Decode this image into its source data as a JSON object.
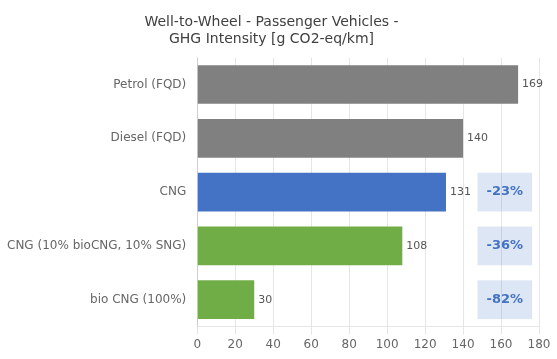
{
  "chart_data": {
    "type": "bar",
    "orientation": "horizontal",
    "title": "Well-to-Wheel - Passenger Vehicles -\nGHG Intensity [g CO2-eq/km]",
    "categories": [
      "Petrol (FQD)",
      "Diesel (FQD)",
      "CNG",
      "CNG (10% bioCNG, 10% SNG)",
      "bio CNG (100%)"
    ],
    "values": [
      169,
      140,
      131,
      108,
      30
    ],
    "colors": [
      "#808080",
      "#808080",
      "#4472c4",
      "#70ad47",
      "#70ad47"
    ],
    "xlim": [
      0,
      180
    ],
    "xticks": [
      0,
      20,
      40,
      60,
      80,
      100,
      120,
      140,
      160,
      180
    ],
    "grid": true,
    "data_labels": true,
    "annotations": [
      {
        "category": "CNG",
        "text": "-23%",
        "color": "#4472c4"
      },
      {
        "category": "CNG (10% bioCNG, 10% SNG)",
        "text": "-36%",
        "color": "#4472c4"
      },
      {
        "category": "bio CNG (100%)",
        "text": "-82%",
        "color": "#4472c4"
      }
    ]
  }
}
